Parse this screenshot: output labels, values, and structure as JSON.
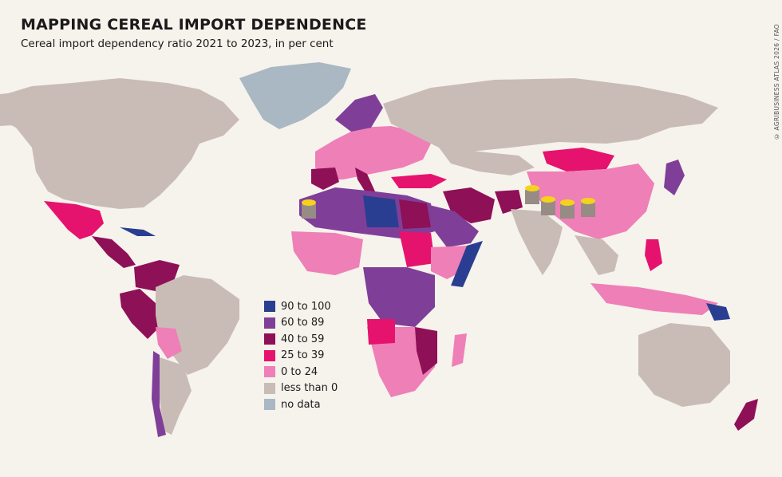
{
  "header": {
    "title": "MAPPING CEREAL IMPORT DEPENDENCE",
    "subtitle": "Cereal import dependency ratio 2021 to 2023, in per cent",
    "credit": "© AGRIBUSINESS ATLAS 2026 / FAO"
  },
  "colors": {
    "background": "#f6f2ec",
    "c90_100": "#2a3e91",
    "c60_89": "#7f3f98",
    "c40_59": "#8e1057",
    "c25_39": "#e5136d",
    "c0_24": "#ee7fb7",
    "neg": "#c9bcb6",
    "nodata": "#a9b8c2"
  },
  "legend": [
    {
      "label": "90 to 100",
      "color": "#2a3e91"
    },
    {
      "label": "60 to 89",
      "color": "#7f3f98"
    },
    {
      "label": "40 to 59",
      "color": "#8e1057"
    },
    {
      "label": "25 to 39",
      "color": "#e5136d"
    },
    {
      "label": "0 to 24",
      "color": "#ee7fb7"
    },
    {
      "label": "less than 0",
      "color": "#c9bcb6"
    },
    {
      "label": "no data",
      "color": "#a9b8c2"
    }
  ],
  "icons": [
    "grain-sack-icon",
    "grain-sack-icon",
    "grain-sack-icon",
    "grain-sack-icon",
    "grain-sack-icon",
    "grain-sack-icon"
  ]
}
